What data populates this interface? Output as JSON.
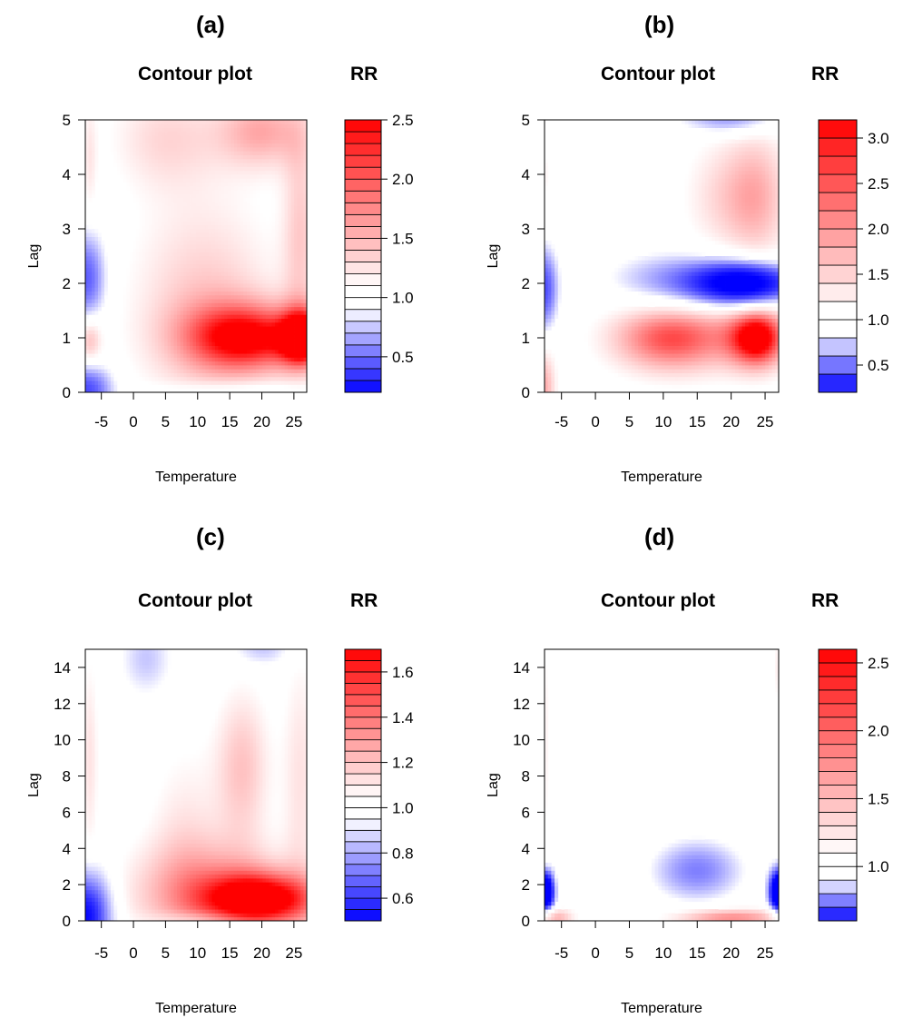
{
  "colors": {
    "low": "#0000ff",
    "neutral": "#ffffff",
    "high": "#ff0000",
    "axis": "#000000"
  },
  "chart_data": [
    {
      "id": "a",
      "type": "heatmap",
      "panel_label": "(a)",
      "title": "Contour plot",
      "legend_title": "RR",
      "xlabel": "Temperature",
      "ylabel": "Lag",
      "xlim": [
        -7.5,
        27
      ],
      "ylim": [
        0,
        5
      ],
      "xticks": [
        -5,
        0,
        5,
        10,
        15,
        20,
        25
      ],
      "yticks": [
        0,
        1,
        2,
        3,
        4,
        5
      ],
      "legend_range": [
        0.2,
        2.5
      ],
      "legend_ticks": [
        0.5,
        1.0,
        1.5,
        2.0,
        2.5
      ],
      "legend_tick_labels": [
        "0.5",
        "1.0",
        "1.5",
        "2.0",
        "2.5"
      ],
      "legend_neutral_band": [
        0.9,
        1.1
      ],
      "legend_levels": 23,
      "features": [
        {
          "x": 18,
          "y": 1.0,
          "sx": 7,
          "sy": 0.45,
          "rr": 2.3
        },
        {
          "x": 26.5,
          "y": 1.0,
          "sx": 2.5,
          "sy": 0.35,
          "rr": 2.4
        },
        {
          "x": 11,
          "y": 1.6,
          "sx": 8,
          "sy": 1.4,
          "rr": 1.4
        },
        {
          "x": 5,
          "y": 4.7,
          "sx": 6,
          "sy": 0.7,
          "rr": 1.3
        },
        {
          "x": 20,
          "y": 4.8,
          "sx": 5,
          "sy": 0.5,
          "rr": 1.55
        },
        {
          "x": 26,
          "y": 3.0,
          "sx": 2,
          "sy": 1.5,
          "rr": 1.35
        },
        {
          "x": -6.8,
          "y": 1.0,
          "sx": 1.3,
          "sy": 0.35,
          "rr": 1.5
        },
        {
          "x": -6.8,
          "y": 4.3,
          "sx": 0.8,
          "sy": 0.8,
          "rr": 1.2
        },
        {
          "x": -7.2,
          "y": 2.1,
          "sx": 1.8,
          "sy": 0.55,
          "rr": 0.45
        },
        {
          "x": -7.2,
          "y": 0.05,
          "sx": 2.5,
          "sy": 0.3,
          "rr": 0.4
        },
        {
          "x": 15,
          "y": 0.05,
          "sx": 8,
          "sy": 0.12,
          "rr": 0.85
        }
      ]
    },
    {
      "id": "b",
      "type": "heatmap",
      "panel_label": "(b)",
      "title": "Contour plot",
      "legend_title": "RR",
      "xlabel": "Temperature",
      "ylabel": "Lag",
      "xlim": [
        -7.5,
        27
      ],
      "ylim": [
        0,
        5
      ],
      "xticks": [
        -5,
        0,
        5,
        10,
        15,
        20,
        25
      ],
      "yticks": [
        0,
        1,
        2,
        3,
        4,
        5
      ],
      "legend_range": [
        0.2,
        3.2
      ],
      "legend_ticks": [
        0.5,
        1.0,
        1.5,
        2.0,
        2.5,
        3.0
      ],
      "legend_tick_labels": [
        "0.5",
        "1.0",
        "1.5",
        "2.0",
        "2.5",
        "3.0"
      ],
      "legend_neutral_band": [
        0.85,
        1.15
      ],
      "legend_levels": 15,
      "features": [
        {
          "x": 24,
          "y": 1.0,
          "sx": 3,
          "sy": 0.4,
          "rr": 3.0
        },
        {
          "x": 10,
          "y": 1.0,
          "sx": 6,
          "sy": 0.45,
          "rr": 1.9
        },
        {
          "x": 16,
          "y": 1.0,
          "sx": 8,
          "sy": 0.5,
          "rr": 1.5
        },
        {
          "x": 24,
          "y": 3.6,
          "sx": 3.5,
          "sy": 0.9,
          "rr": 1.7
        },
        {
          "x": 18,
          "y": 3.6,
          "sx": 4,
          "sy": 0.8,
          "rr": 1.35
        },
        {
          "x": -7.5,
          "y": 0.1,
          "sx": 1.2,
          "sy": 0.5,
          "rr": 1.8
        },
        {
          "x": -7.2,
          "y": 4.0,
          "sx": 0.6,
          "sy": 0.4,
          "rr": 1.2
        },
        {
          "x": 22,
          "y": 2.0,
          "sx": 5,
          "sy": 0.25,
          "rr": 0.15
        },
        {
          "x": 13,
          "y": 2.05,
          "sx": 7,
          "sy": 0.35,
          "rr": 0.55
        },
        {
          "x": -7.5,
          "y": 1.9,
          "sx": 1.3,
          "sy": 0.5,
          "rr": 0.4
        },
        {
          "x": 20,
          "y": 5.0,
          "sx": 5,
          "sy": 0.18,
          "rr": 0.55
        }
      ]
    },
    {
      "id": "c",
      "type": "heatmap",
      "panel_label": "(c)",
      "title": "Contour plot",
      "legend_title": "RR",
      "xlabel": "Temperature",
      "ylabel": "Lag",
      "xlim": [
        -7.5,
        27
      ],
      "ylim": [
        0,
        15
      ],
      "xticks": [
        -5,
        0,
        5,
        10,
        15,
        20,
        25
      ],
      "yticks": [
        0,
        2,
        4,
        6,
        8,
        10,
        12,
        14
      ],
      "legend_range": [
        0.5,
        1.7
      ],
      "legend_ticks": [
        0.6,
        0.8,
        1.0,
        1.2,
        1.4,
        1.6
      ],
      "legend_tick_labels": [
        "0.6",
        "0.8",
        "1.0",
        "1.2",
        "1.4",
        "1.6"
      ],
      "legend_neutral_band": [
        0.95,
        1.05
      ],
      "legend_levels": 24,
      "features": [
        {
          "x": 20,
          "y": 1.2,
          "sx": 6,
          "sy": 1.0,
          "rr": 1.7
        },
        {
          "x": 12,
          "y": 1.5,
          "sx": 9,
          "sy": 2.0,
          "rr": 1.3
        },
        {
          "x": 17,
          "y": 8.5,
          "sx": 3,
          "sy": 3.0,
          "rr": 1.2
        },
        {
          "x": 26,
          "y": 8.0,
          "sx": 2,
          "sy": 5,
          "rr": 1.12
        },
        {
          "x": 8,
          "y": 5.0,
          "sx": 4,
          "sy": 3.5,
          "rr": 1.1
        },
        {
          "x": -6.8,
          "y": 9.0,
          "sx": 1.0,
          "sy": 4,
          "rr": 1.12
        },
        {
          "x": -7.3,
          "y": 0.3,
          "sx": 2.5,
          "sy": 1.6,
          "rr": 0.5
        },
        {
          "x": 2,
          "y": 14.5,
          "sx": 2.5,
          "sy": 1.3,
          "rr": 0.85
        },
        {
          "x": 20,
          "y": 15.0,
          "sx": 3,
          "sy": 0.6,
          "rr": 0.85
        },
        {
          "x": 10,
          "y": 0.1,
          "sx": 5,
          "sy": 0.3,
          "rr": 0.9
        }
      ]
    },
    {
      "id": "d",
      "type": "heatmap",
      "panel_label": "(d)",
      "title": "Contour plot",
      "legend_title": "RR",
      "xlabel": "Temperature",
      "ylabel": "Lag",
      "xlim": [
        -7.5,
        27
      ],
      "ylim": [
        0,
        15
      ],
      "xticks": [
        -5,
        0,
        5,
        10,
        15,
        20,
        25
      ],
      "yticks": [
        0,
        2,
        4,
        6,
        8,
        10,
        12,
        14
      ],
      "legend_range": [
        0.6,
        2.6
      ],
      "legend_ticks": [
        1.0,
        1.5,
        2.0,
        2.5
      ],
      "legend_tick_labels": [
        "1.0",
        "1.5",
        "2.0",
        "2.5"
      ],
      "legend_neutral_band": [
        0.9,
        1.1
      ],
      "legend_levels": 20,
      "features": [
        {
          "x": 15,
          "y": 2.8,
          "sx": 5,
          "sy": 1.3,
          "rr": 0.75
        },
        {
          "x": -7.3,
          "y": 1.6,
          "sx": 0.9,
          "sy": 0.9,
          "rr": 0.45
        },
        {
          "x": 27,
          "y": 1.6,
          "sx": 1.0,
          "sy": 0.9,
          "rr": 0.45
        },
        {
          "x": 20,
          "y": 0.2,
          "sx": 6,
          "sy": 0.35,
          "rr": 1.8
        },
        {
          "x": -6,
          "y": 0.2,
          "sx": 2,
          "sy": 0.35,
          "rr": 1.6
        },
        {
          "x": -7.2,
          "y": 10,
          "sx": 0.5,
          "sy": 5,
          "rr": 1.15
        },
        {
          "x": 27,
          "y": 14,
          "sx": 0.5,
          "sy": 1.5,
          "rr": 1.2
        }
      ]
    }
  ]
}
